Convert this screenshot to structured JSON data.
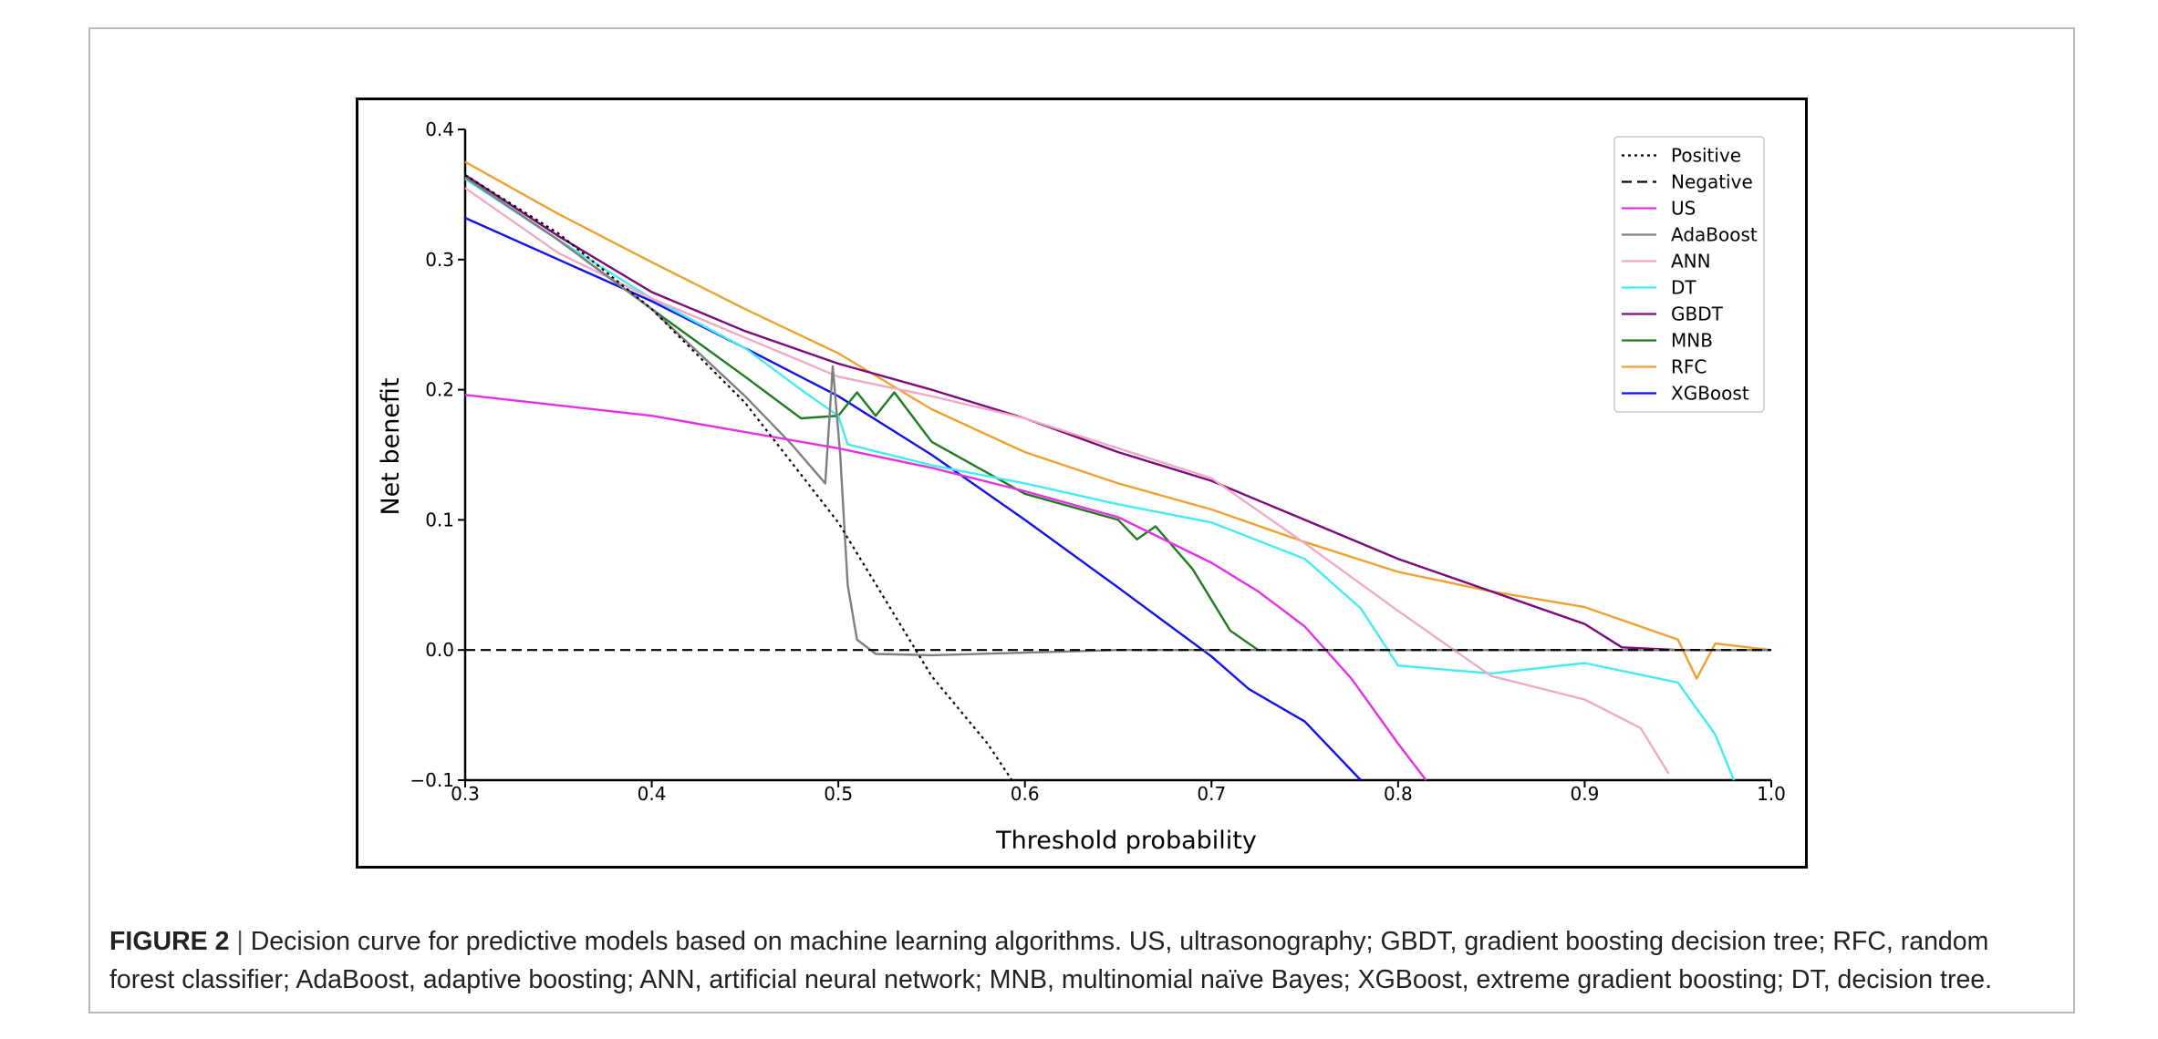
{
  "caption": {
    "label": "FIGURE 2",
    "separator": "|",
    "text": "Decision curve for predictive models based on machine learning algorithms. US, ultrasonography; GBDT, gradient boosting decision tree; RFC, random forest classifier; AdaBoost, adaptive boosting; ANN, artificial neural network; MNB, multinomial naïve Bayes; XGBoost, extreme gradient boosting; DT, decision tree."
  },
  "chart_data": {
    "type": "line",
    "title": "",
    "xlabel": "Threshold probability",
    "ylabel": "Net benefit",
    "xlim": [
      0.3,
      1.0
    ],
    "ylim": [
      -0.1,
      0.4
    ],
    "x_ticks": [
      "0.3",
      "0.4",
      "0.5",
      "0.6",
      "0.7",
      "0.8",
      "0.9",
      "1.0"
    ],
    "y_ticks": [
      "−0.1",
      "0.0",
      "0.1",
      "0.2",
      "0.3",
      "0.4"
    ],
    "grid": false,
    "legend_position": "top-right",
    "series": [
      {
        "name": "Positive",
        "color": "#000000",
        "style": "dotted",
        "x": [
          0.3,
          0.35,
          0.4,
          0.45,
          0.5,
          0.55,
          0.58,
          0.593
        ],
        "y": [
          0.365,
          0.32,
          0.262,
          0.19,
          0.098,
          -0.02,
          -0.072,
          -0.1
        ]
      },
      {
        "name": "Negative",
        "color": "#000000",
        "style": "dashed",
        "x": [
          0.3,
          1.0
        ],
        "y": [
          0.0,
          0.0
        ]
      },
      {
        "name": "US",
        "color": "#e530e5",
        "style": "solid",
        "x": [
          0.3,
          0.4,
          0.5,
          0.55,
          0.6,
          0.65,
          0.7,
          0.725,
          0.75,
          0.775,
          0.8,
          0.815
        ],
        "y": [
          0.196,
          0.18,
          0.155,
          0.14,
          0.122,
          0.102,
          0.067,
          0.045,
          0.018,
          -0.022,
          -0.072,
          -0.1
        ]
      },
      {
        "name": "AdaBoost",
        "color": "#7f7f7f",
        "style": "solid",
        "x": [
          0.3,
          0.35,
          0.4,
          0.45,
          0.475,
          0.493,
          0.497,
          0.501,
          0.505,
          0.51,
          0.52,
          0.55,
          0.6,
          0.65,
          0.7,
          1.0
        ],
        "y": [
          0.363,
          0.315,
          0.262,
          0.195,
          0.158,
          0.128,
          0.218,
          0.15,
          0.05,
          0.008,
          -0.003,
          -0.004,
          -0.002,
          0.0,
          0.0,
          0.0
        ]
      },
      {
        "name": "ANN",
        "color": "#f0aac8",
        "style": "solid",
        "x": [
          0.3,
          0.35,
          0.4,
          0.45,
          0.5,
          0.55,
          0.6,
          0.65,
          0.7,
          0.75,
          0.8,
          0.85,
          0.9,
          0.93,
          0.945
        ],
        "y": [
          0.355,
          0.305,
          0.27,
          0.24,
          0.21,
          0.195,
          0.178,
          0.155,
          0.132,
          0.082,
          0.03,
          -0.02,
          -0.038,
          -0.06,
          -0.095
        ]
      },
      {
        "name": "DT",
        "color": "#44ecf0",
        "style": "solid",
        "x": [
          0.3,
          0.35,
          0.4,
          0.45,
          0.48,
          0.5,
          0.505,
          0.55,
          0.6,
          0.65,
          0.7,
          0.75,
          0.78,
          0.8,
          0.85,
          0.9,
          0.95,
          0.97,
          0.98
        ],
        "y": [
          0.362,
          0.315,
          0.27,
          0.232,
          0.2,
          0.18,
          0.158,
          0.142,
          0.128,
          0.112,
          0.098,
          0.07,
          0.032,
          -0.012,
          -0.018,
          -0.01,
          -0.025,
          -0.065,
          -0.1
        ]
      },
      {
        "name": "GBDT",
        "color": "#7a0a7a",
        "style": "solid",
        "x": [
          0.3,
          0.35,
          0.4,
          0.45,
          0.5,
          0.55,
          0.6,
          0.65,
          0.7,
          0.75,
          0.8,
          0.85,
          0.9,
          0.92,
          0.95,
          1.0
        ],
        "y": [
          0.365,
          0.318,
          0.275,
          0.245,
          0.22,
          0.2,
          0.178,
          0.152,
          0.13,
          0.1,
          0.07,
          0.045,
          0.02,
          0.002,
          0.0,
          0.0
        ]
      },
      {
        "name": "MNB",
        "color": "#207a20",
        "style": "solid",
        "x": [
          0.3,
          0.35,
          0.4,
          0.45,
          0.48,
          0.5,
          0.51,
          0.52,
          0.53,
          0.55,
          0.6,
          0.65,
          0.66,
          0.67,
          0.69,
          0.71,
          0.725,
          1.0
        ],
        "y": [
          0.363,
          0.315,
          0.262,
          0.21,
          0.178,
          0.18,
          0.198,
          0.18,
          0.198,
          0.16,
          0.12,
          0.1,
          0.085,
          0.095,
          0.062,
          0.015,
          0.0,
          0.0
        ]
      },
      {
        "name": "RFC",
        "color": "#f0a030",
        "style": "solid",
        "x": [
          0.3,
          0.35,
          0.4,
          0.45,
          0.5,
          0.55,
          0.6,
          0.65,
          0.7,
          0.75,
          0.8,
          0.85,
          0.9,
          0.95,
          0.96,
          0.97,
          1.0
        ],
        "y": [
          0.375,
          0.335,
          0.298,
          0.262,
          0.228,
          0.185,
          0.152,
          0.128,
          0.108,
          0.083,
          0.06,
          0.045,
          0.033,
          0.008,
          -0.022,
          0.005,
          0.0
        ]
      },
      {
        "name": "XGBoost",
        "color": "#1010ee",
        "style": "solid",
        "x": [
          0.3,
          0.35,
          0.4,
          0.45,
          0.5,
          0.55,
          0.6,
          0.65,
          0.7,
          0.72,
          0.75,
          0.78
        ],
        "y": [
          0.332,
          0.3,
          0.268,
          0.232,
          0.195,
          0.15,
          0.1,
          0.048,
          -0.005,
          -0.03,
          -0.055,
          -0.1
        ]
      }
    ]
  }
}
